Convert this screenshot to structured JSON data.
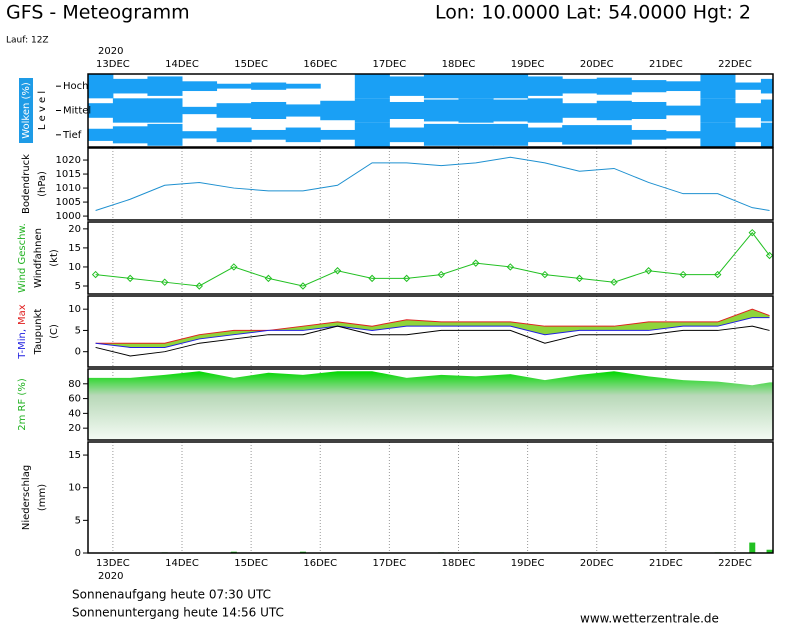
{
  "page": {
    "title": "GFS - Meteogramm",
    "location": "Lon: 10.0000 Lat: 54.0000 Hgt: 2",
    "run": "Lauf: 12Z",
    "sunrise": "Sonnenaufgang heute 07:30 UTC",
    "sunset": "Sonnenuntergang heute 14:56 UTC",
    "source": "www.wetterzentrale.de"
  },
  "time_axis": {
    "year": "2020",
    "xlim": [
      12.64,
      22.55
    ],
    "xticks": [
      {
        "value": 13,
        "label": "13DEC"
      },
      {
        "value": 14,
        "label": "14DEC"
      },
      {
        "value": 15,
        "label": "15DEC"
      },
      {
        "value": 16,
        "label": "16DEC"
      },
      {
        "value": 17,
        "label": "17DEC"
      },
      {
        "value": 18,
        "label": "18DEC"
      },
      {
        "value": 19,
        "label": "19DEC"
      },
      {
        "value": 20,
        "label": "20DEC"
      },
      {
        "value": 21,
        "label": "21DEC"
      },
      {
        "value": 22,
        "label": "22DEC"
      }
    ]
  },
  "chart_data": [
    {
      "type": "cloud",
      "ylabel": [
        {
          "parts": [
            {
              "text": "Wolken (%)",
              "color": "#ffffff",
              "background": "#1e9be6"
            }
          ]
        },
        {
          "parts": [
            {
              "text": "L e v e l"
            }
          ]
        }
      ],
      "color": "#1aa0f5",
      "ylim": [
        0,
        100
      ],
      "x": [
        12.75,
        13.25,
        13.75,
        14.25,
        14.75,
        15.25,
        15.75,
        16.25,
        16.75,
        17.25,
        17.75,
        18.25,
        18.75,
        19.25,
        19.75,
        20.25,
        20.75,
        21.25,
        21.75,
        22.25,
        22.5
      ],
      "series": [
        {
          "name": "Hoch",
          "values": [
            100,
            60,
            80,
            40,
            20,
            30,
            20,
            0,
            100,
            80,
            100,
            100,
            100,
            80,
            60,
            70,
            50,
            40,
            100,
            30,
            60
          ]
        },
        {
          "name": "Mittel",
          "values": [
            60,
            100,
            100,
            30,
            60,
            70,
            50,
            80,
            100,
            70,
            90,
            100,
            90,
            100,
            60,
            80,
            70,
            40,
            100,
            60,
            90
          ]
        },
        {
          "name": "Tief",
          "values": [
            50,
            70,
            90,
            30,
            60,
            40,
            60,
            40,
            100,
            60,
            90,
            90,
            90,
            60,
            80,
            80,
            40,
            30,
            100,
            60,
            100
          ]
        }
      ]
    },
    {
      "type": "line",
      "ylabel": [
        {
          "parts": [
            {
              "text": "Bodendruck"
            }
          ]
        },
        {
          "parts": [
            {
              "text": "(hPa)"
            }
          ]
        }
      ],
      "ylim": [
        998.6,
        1024.3
      ],
      "yticks": [
        1000,
        1005,
        1010,
        1015,
        1020
      ],
      "grid": true,
      "x": [
        12.75,
        13.25,
        13.75,
        14.25,
        14.75,
        15.25,
        15.75,
        16.25,
        16.75,
        17.25,
        17.75,
        18.25,
        18.75,
        19.25,
        19.75,
        20.25,
        20.75,
        21.25,
        21.75,
        22.25,
        22.5
      ],
      "series": [
        {
          "color": "#1e90d0",
          "values": [
            1002,
            1006,
            1011,
            1012,
            1010,
            1009,
            1009,
            1011,
            1019,
            1019,
            1018,
            1019,
            1021,
            1019,
            1016,
            1017,
            1012,
            1008,
            1008,
            1003,
            1002
          ]
        }
      ]
    },
    {
      "type": "line",
      "markers": "diamond",
      "ylabel": [
        {
          "parts": [
            {
              "text": "Wind Geschw.",
              "color": "#22b222"
            }
          ]
        },
        {
          "parts": [
            {
              "text": "Windfahnen"
            }
          ]
        },
        {
          "parts": [
            {
              "text": "(kt)"
            }
          ]
        }
      ],
      "ylim": [
        2.9,
        21.8
      ],
      "yticks": [
        5,
        10,
        15,
        20
      ],
      "grid": true,
      "x": [
        12.75,
        13.25,
        13.75,
        14.25,
        14.75,
        15.25,
        15.75,
        16.25,
        16.75,
        17.25,
        17.75,
        18.25,
        18.75,
        19.25,
        19.75,
        20.25,
        20.75,
        21.25,
        21.75,
        22.25,
        22.5
      ],
      "series": [
        {
          "color": "#22c022",
          "values": [
            8,
            7,
            6,
            5,
            10,
            7,
            5,
            9,
            7,
            7,
            8,
            11,
            10,
            8,
            7,
            6,
            9,
            8,
            8,
            19,
            13
          ]
        }
      ]
    },
    {
      "type": "range_line",
      "fill": "#8fd43a",
      "ylabel": [
        {
          "parts": [
            {
              "text": "T-Min,",
              "color": "#2020e0"
            },
            {
              "text": "Max",
              "color": "#e02020"
            }
          ]
        },
        {
          "parts": [
            {
              "text": "Taupunkt"
            }
          ]
        },
        {
          "parts": [
            {
              "text": "(C)"
            }
          ]
        }
      ],
      "ylim": [
        -3.6,
        13.1
      ],
      "yticks": [
        0,
        5,
        10
      ],
      "grid": true,
      "x": [
        12.75,
        13.25,
        13.75,
        14.25,
        14.75,
        15.25,
        15.75,
        16.25,
        16.75,
        17.25,
        17.75,
        18.25,
        18.75,
        19.25,
        19.75,
        20.25,
        20.75,
        21.25,
        21.75,
        22.25,
        22.5
      ],
      "series": [
        {
          "color": "#e02020",
          "values": [
            2,
            2,
            2,
            4,
            5,
            5,
            6,
            7,
            6,
            7.5,
            7,
            7,
            7,
            6,
            6,
            6,
            7,
            7,
            7,
            10,
            8.5
          ]
        },
        {
          "color": "#2020e0",
          "values": [
            2,
            1,
            1,
            3,
            4,
            5,
            5,
            6,
            5,
            6,
            6,
            6,
            6,
            4,
            5,
            5,
            5,
            6,
            6,
            8,
            8
          ]
        },
        {
          "color": "#000000",
          "values": [
            1,
            -1,
            0,
            2,
            3,
            4,
            4,
            6,
            4,
            4,
            5,
            5,
            5,
            2,
            4,
            4,
            4,
            5,
            5,
            6,
            5
          ]
        }
      ]
    },
    {
      "type": "area",
      "ylabel": [
        {
          "parts": [
            {
              "text": "2m RF (%)",
              "color": "#22b222"
            }
          ]
        }
      ],
      "ylim": [
        4,
        100
      ],
      "yticks": [
        20,
        40,
        60,
        80
      ],
      "grid": true,
      "x": [
        12.75,
        13.25,
        13.75,
        14.25,
        14.75,
        15.25,
        15.75,
        16.25,
        16.75,
        17.25,
        17.75,
        18.25,
        18.75,
        19.25,
        19.75,
        20.25,
        20.75,
        21.25,
        21.75,
        22.25,
        22.5
      ],
      "series": [
        {
          "color": "#00d800",
          "values": [
            88,
            88,
            92,
            97,
            88,
            95,
            92,
            97,
            97,
            88,
            92,
            90,
            93,
            85,
            92,
            97,
            90,
            85,
            83,
            78,
            82
          ]
        }
      ]
    },
    {
      "type": "bar",
      "ylabel": [
        {
          "parts": [
            {
              "text": "Niederschlag"
            }
          ]
        },
        {
          "parts": [
            {
              "text": "(mm)"
            }
          ]
        }
      ],
      "ylim": [
        0,
        17
      ],
      "yticks": [
        0,
        5,
        10,
        15
      ],
      "grid": true,
      "x": [
        12.75,
        13.25,
        13.75,
        14.25,
        14.75,
        15.25,
        15.75,
        16.25,
        16.75,
        17.25,
        17.75,
        18.25,
        18.75,
        19.25,
        19.75,
        20.25,
        20.75,
        21.25,
        21.75,
        22.25,
        22.5
      ],
      "series": [
        {
          "color": "#22c022",
          "values": [
            0,
            0,
            0.1,
            0,
            0.2,
            0,
            0.2,
            0,
            0,
            0,
            0.1,
            0.1,
            0,
            0,
            0,
            0,
            0,
            0,
            0.1,
            1.6,
            0.5
          ]
        }
      ]
    }
  ]
}
